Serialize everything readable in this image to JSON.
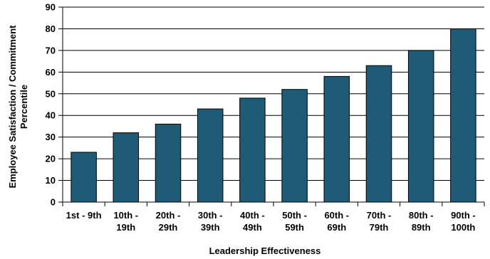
{
  "chart_data": {
    "type": "bar",
    "categories": [
      [
        "1st - 9th"
      ],
      [
        "10th -",
        "19th"
      ],
      [
        "20th -",
        "29th"
      ],
      [
        "30th -",
        "39th"
      ],
      [
        "40th -",
        "49th"
      ],
      [
        "50th -",
        "59th"
      ],
      [
        "60th -",
        "69th"
      ],
      [
        "70th -",
        "79th"
      ],
      [
        "80th -",
        "89th"
      ],
      [
        "90th -",
        "100th"
      ]
    ],
    "values": [
      23,
      32,
      36,
      43,
      48,
      52,
      58,
      63,
      70,
      80
    ],
    "xlabel": "Leadership Effectiveness",
    "ylabel": [
      "Employee Satisfaction / Commitment",
      "Percentile"
    ],
    "ylim": [
      0,
      90
    ],
    "yticks": [
      0,
      10,
      20,
      30,
      40,
      50,
      60,
      70,
      80,
      90
    ],
    "grid": true,
    "colors": {
      "bar": "#1f5a77",
      "bar_edge": "#000000",
      "grid": "#000000"
    }
  }
}
